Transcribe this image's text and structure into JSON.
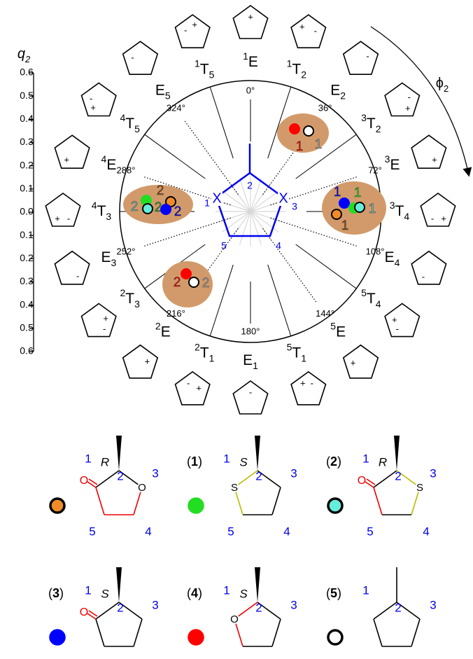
{
  "q_axis": {
    "label": {
      "main": "q",
      "sub": "2"
    },
    "ticks": [
      "0.6",
      "0.5",
      "0.4",
      "0.3",
      "0.2",
      "0.1",
      "0.0",
      "0.1",
      "0.2",
      "0.3",
      "0.4",
      "0.5",
      "0.6"
    ]
  },
  "phi_label": {
    "main": "ϕ",
    "sub": "2"
  },
  "conformations": [
    {
      "sup": "1",
      "main": "E",
      "signs": [
        "+"
      ]
    },
    {
      "sup": "1",
      "main": "T",
      "sub": "2",
      "signs": [
        "+",
        "-"
      ]
    },
    {
      "main": "E",
      "sub": "2",
      "signs": [
        "-"
      ]
    },
    {
      "sup": "3",
      "main": "T",
      "sub": "2",
      "signs": [
        "-",
        "+"
      ]
    },
    {
      "sup": "3",
      "main": "E",
      "signs": [
        "+"
      ]
    },
    {
      "sup": "3",
      "main": "T",
      "sub": "4",
      "signs": [
        "-",
        "+"
      ]
    },
    {
      "main": "E",
      "sub": "4",
      "signs": [
        "-"
      ]
    },
    {
      "sup": "5",
      "main": "T",
      "sub": "4",
      "signs": [
        "+",
        "-"
      ]
    },
    {
      "sup": "5",
      "main": "E",
      "signs": [
        "+"
      ]
    },
    {
      "sup": "5",
      "main": "T",
      "sub": "1",
      "signs": [
        "+",
        "-"
      ]
    },
    {
      "main": "E",
      "sub": "1",
      "signs": [
        "-"
      ]
    },
    {
      "sup": "2",
      "main": "T",
      "sub": "1",
      "signs": [
        "-",
        "+"
      ]
    },
    {
      "sup": "2",
      "main": "E",
      "signs": [
        "+"
      ]
    },
    {
      "sup": "2",
      "main": "T",
      "sub": "3",
      "signs": [
        "+",
        "-"
      ]
    },
    {
      "main": "E",
      "sub": "3",
      "signs": [
        "-"
      ]
    },
    {
      "sup": "4",
      "main": "T",
      "sub": "3",
      "signs": [
        "+",
        "-"
      ]
    },
    {
      "sup": "4",
      "main": "E",
      "signs": [
        "+"
      ]
    },
    {
      "sup": "4",
      "main": "T",
      "sub": "5",
      "signs": [
        "-",
        "+"
      ]
    },
    {
      "main": "E",
      "sub": "5",
      "signs": [
        "-"
      ]
    },
    {
      "sup": "1",
      "main": "T",
      "sub": "5",
      "signs": [
        "-",
        "+"
      ]
    }
  ],
  "angles": [
    "0°",
    "36°",
    "72°",
    "108°",
    "144°",
    "180°",
    "216°",
    "252°",
    "288°",
    "324°"
  ],
  "central_ring": {
    "atoms": [
      "X",
      "X"
    ],
    "numbers": [
      "1",
      "2",
      "3",
      "4",
      "5"
    ]
  },
  "clusters": [
    {
      "points": [
        {
          "fill": "#ff0000",
          "stroke": "#ff0000",
          "label": "1",
          "label_color": "#ff0000"
        },
        {
          "fill": "#ffffff",
          "stroke": "#000000",
          "label": "1",
          "label_color": "#b0b0b0"
        }
      ]
    },
    {
      "points": [
        {
          "fill": "#0000ff",
          "stroke": "#0000ff",
          "label": "1",
          "label_color": "#0000ff"
        },
        {
          "fill": "#22dd22",
          "stroke": "#22dd22",
          "label": "1",
          "label_color": "#22dd22"
        },
        {
          "fill": "#66eedd",
          "stroke": "#000000",
          "label": "1",
          "label_color": "#66c8c8"
        },
        {
          "fill": "#f08c28",
          "stroke": "#000000",
          "label": "1",
          "label_color": "#8a4a10"
        }
      ]
    },
    {
      "points": [
        {
          "fill": "#22dd22",
          "stroke": "#22dd22",
          "label": "2",
          "label_color": "#22aa22"
        },
        {
          "fill": "#f08c28",
          "stroke": "#000000",
          "label": "2",
          "label_color": "#8a4a10"
        },
        {
          "fill": "#66eedd",
          "stroke": "#000000",
          "label": "2",
          "label_color": "#66c8c8"
        },
        {
          "fill": "#0000ff",
          "stroke": "#0000ff",
          "label": "2",
          "label_color": "#0000ff"
        }
      ]
    },
    {
      "points": [
        {
          "fill": "#ff0000",
          "stroke": "#ff0000",
          "label": "2",
          "label_color": "#ff0000"
        },
        {
          "fill": "#ffffff",
          "stroke": "#000000",
          "label": "2",
          "label_color": "#b0b0b0"
        }
      ]
    }
  ],
  "compounds": [
    {
      "stereo": "R",
      "exo": "O",
      "ring": {
        "3": "O"
      },
      "numbers": [
        "1",
        "2",
        "3",
        "4",
        "5"
      ],
      "marker": {
        "fill": "#f08c28",
        "stroke": "#000000"
      }
    },
    {
      "label": [
        "(",
        "1",
        ")"
      ],
      "stereo": "S",
      "ring": {
        "1": "S"
      },
      "numbers": [
        "1",
        "2",
        "3",
        "4",
        "5"
      ],
      "marker": {
        "fill": "#22dd22",
        "stroke": "#22dd22"
      }
    },
    {
      "label": [
        "(",
        "2",
        ")"
      ],
      "stereo": "R",
      "exo": "O",
      "ring": {
        "3": "S"
      },
      "numbers": [
        "1",
        "2",
        "3",
        "4",
        "5"
      ],
      "marker": {
        "fill": "#66eedd",
        "stroke": "#000000"
      }
    },
    {
      "label": [
        "(",
        "3",
        ")"
      ],
      "stereo": "S",
      "exo": "O",
      "ring": {},
      "numbers": [
        "1",
        "2",
        "3",
        "4",
        "5"
      ],
      "marker": {
        "fill": "#0000ff",
        "stroke": "#0000ff"
      }
    },
    {
      "label": [
        "(",
        "4",
        ")"
      ],
      "stereo": "S",
      "ring": {
        "1": "O"
      },
      "numbers": [
        "1",
        "2",
        "3",
        "4",
        "5"
      ],
      "marker": {
        "fill": "#ff0000",
        "stroke": "#ff0000"
      }
    },
    {
      "label": [
        "(",
        "5",
        ")"
      ],
      "ring": {},
      "numbers": [
        "1",
        "2",
        "3",
        "4",
        "5"
      ],
      "marker": {
        "fill": "#ffffff",
        "stroke": "#000000"
      }
    }
  ]
}
